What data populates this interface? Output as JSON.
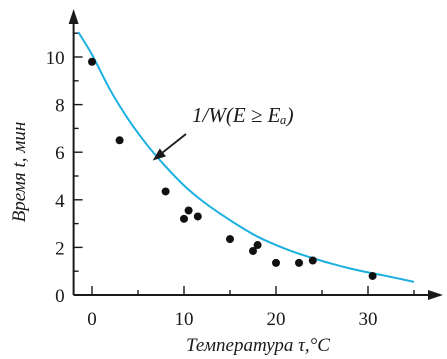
{
  "chart_data": {
    "type": "scatter",
    "xlabel": "Температура τ,°C",
    "ylabel": "Время t, мин",
    "xlim": [
      -2,
      37
    ],
    "ylim": [
      0,
      11.5
    ],
    "x_ticks": [
      0,
      10,
      20,
      30
    ],
    "y_ticks": [
      0,
      2,
      4,
      6,
      8,
      10
    ],
    "colors": {
      "curve": "#1ab0e0",
      "points": "#111111",
      "axes": "#1a1a1a"
    },
    "points": [
      {
        "x": 0,
        "y": 9.8
      },
      {
        "x": 3,
        "y": 6.5
      },
      {
        "x": 8,
        "y": 4.35
      },
      {
        "x": 10,
        "y": 3.2
      },
      {
        "x": 10.5,
        "y": 3.55
      },
      {
        "x": 11.5,
        "y": 3.3
      },
      {
        "x": 15,
        "y": 2.35
      },
      {
        "x": 17.5,
        "y": 1.85
      },
      {
        "x": 18,
        "y": 2.1
      },
      {
        "x": 20,
        "y": 1.35
      },
      {
        "x": 22.5,
        "y": 1.35
      },
      {
        "x": 24,
        "y": 1.45
      },
      {
        "x": 30.5,
        "y": 0.8
      }
    ],
    "curve": {
      "x": [
        -1.5,
        0,
        2,
        4,
        6,
        8,
        10,
        12,
        14,
        16,
        18,
        20,
        22,
        24,
        26,
        28,
        30,
        32,
        35
      ],
      "y": [
        11.05,
        10.1,
        8.6,
        7.35,
        6.3,
        5.4,
        4.6,
        3.95,
        3.4,
        2.9,
        2.45,
        2.1,
        1.8,
        1.55,
        1.32,
        1.12,
        0.95,
        0.8,
        0.55
      ]
    },
    "annotation": {
      "text": "1/W(E ≥ Eₐ)",
      "x": 22,
      "y": 7.7,
      "arrow_to": {
        "x": 6.6,
        "y": 5.65
      }
    }
  }
}
